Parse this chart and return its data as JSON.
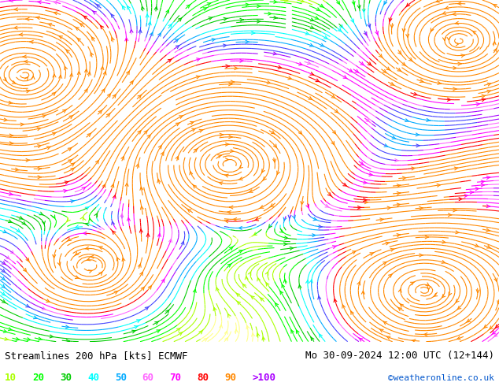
{
  "title_left": "Streamlines 200 hPa [kts] ECMWF",
  "title_right": "Mo 30-09-2024 12:00 UTC (12+144)",
  "credit": "©weatheronline.co.uk",
  "legend_values": [
    "10",
    "20",
    "30",
    "40",
    "50",
    "60",
    "70",
    "80",
    "90",
    ">100"
  ],
  "legend_colors": [
    "#aaff00",
    "#00ff00",
    "#00cc00",
    "#00ffff",
    "#00aaff",
    "#ff66ff",
    "#ff00ff",
    "#ff0000",
    "#ff8800",
    "#aa00ff"
  ],
  "background_color": "#ffffff",
  "plot_bg_color": "#ffffff",
  "fig_width": 6.34,
  "fig_height": 4.9,
  "dpi": 100,
  "seed": 42,
  "title_fontsize": 9,
  "legend_fontsize": 9,
  "credit_fontsize": 8,
  "cmap_colors": [
    "#ffffff",
    "#ffff88",
    "#aaff00",
    "#00ff00",
    "#00cc00",
    "#00ffff",
    "#00aaff",
    "#4444ff",
    "#aa00ff",
    "#ff66ff",
    "#ff00ff",
    "#ff0000",
    "#ff8800"
  ],
  "cmap_bounds": [
    0,
    5,
    10,
    20,
    30,
    40,
    50,
    60,
    70,
    75,
    80,
    90,
    100,
    130
  ],
  "density": 3.0,
  "linewidth": 0.8,
  "arrowsize": 0.7
}
